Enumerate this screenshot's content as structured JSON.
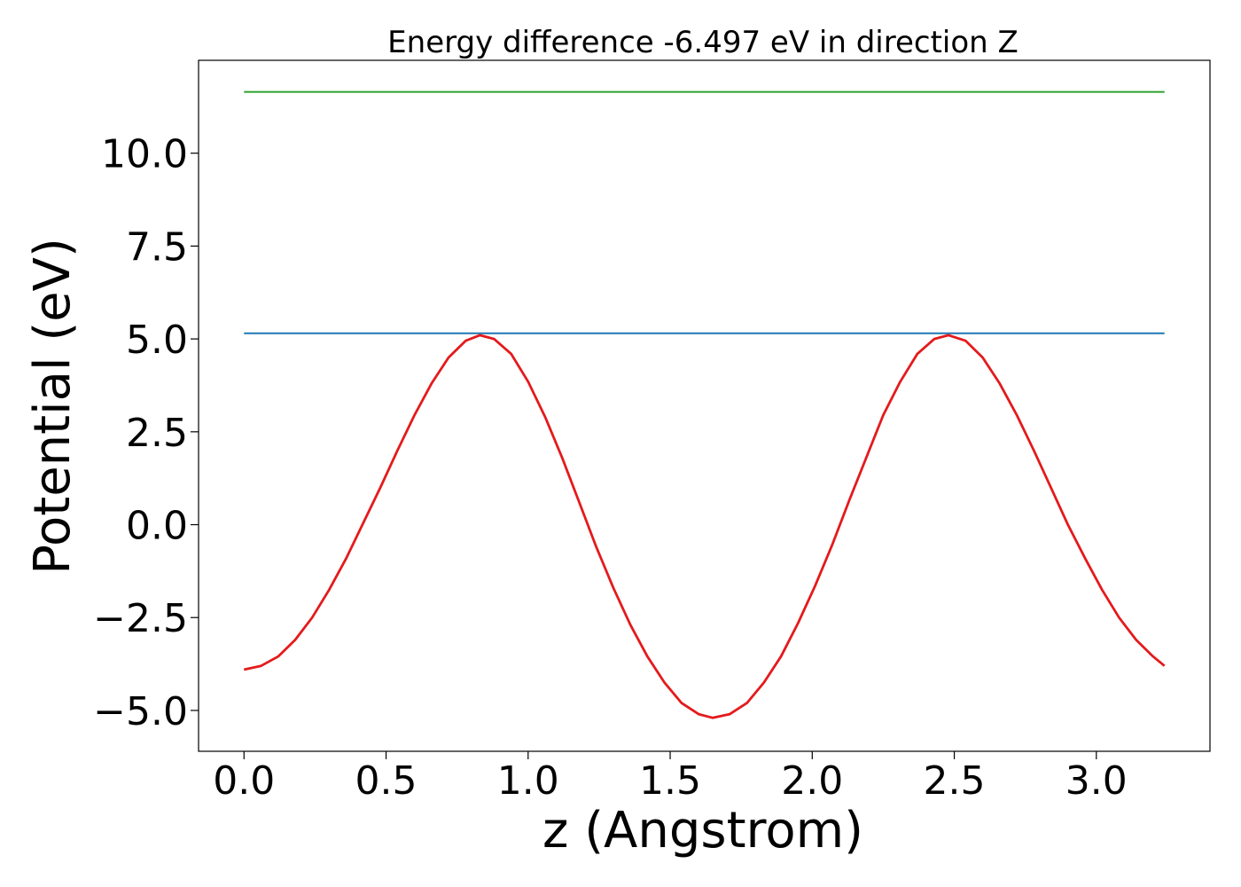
{
  "chart_data": {
    "type": "line",
    "title": "Energy difference -6.497 eV in direction Z",
    "xlabel": "z (Angstrom)",
    "ylabel": "Potential (eV)",
    "xlim": [
      -0.16,
      3.4
    ],
    "ylim": [
      -6.1,
      12.5
    ],
    "xticks": [
      0.0,
      0.5,
      1.0,
      1.5,
      2.0,
      2.5,
      3.0
    ],
    "xtick_labels": [
      "0.0",
      "0.5",
      "1.0",
      "1.5",
      "2.0",
      "2.5",
      "3.0"
    ],
    "yticks": [
      -5.0,
      -2.5,
      0.0,
      2.5,
      5.0,
      7.5,
      10.0
    ],
    "ytick_labels": [
      "−5.0",
      "−2.5",
      "0.0",
      "2.5",
      "5.0",
      "7.5",
      "10.0"
    ],
    "grid": false,
    "series": [
      {
        "color": "#2ca02c",
        "x": [
          0.0,
          3.24
        ],
        "y": [
          11.65,
          11.65
        ]
      },
      {
        "color": "#1f77b4",
        "x": [
          0.0,
          3.24
        ],
        "y": [
          5.15,
          5.15
        ]
      },
      {
        "color": "#e41a1c",
        "x": [
          0.0,
          0.06,
          0.12,
          0.18,
          0.24,
          0.3,
          0.36,
          0.42,
          0.48,
          0.54,
          0.6,
          0.66,
          0.72,
          0.78,
          0.83,
          0.88,
          0.94,
          1.0,
          1.06,
          1.12,
          1.18,
          1.24,
          1.3,
          1.36,
          1.42,
          1.48,
          1.54,
          1.6,
          1.65,
          1.71,
          1.77,
          1.83,
          1.89,
          1.95,
          2.01,
          2.07,
          2.13,
          2.19,
          2.25,
          2.31,
          2.37,
          2.43,
          2.48,
          2.54,
          2.6,
          2.66,
          2.72,
          2.78,
          2.84,
          2.9,
          2.96,
          3.02,
          3.08,
          3.14,
          3.2,
          3.24
        ],
        "y": [
          -3.9,
          -3.8,
          -3.55,
          -3.1,
          -2.5,
          -1.75,
          -0.9,
          0.05,
          1.0,
          2.0,
          2.95,
          3.8,
          4.5,
          4.95,
          5.1,
          5.0,
          4.6,
          3.85,
          2.9,
          1.8,
          0.6,
          -0.6,
          -1.7,
          -2.7,
          -3.55,
          -4.25,
          -4.8,
          -5.1,
          -5.2,
          -5.1,
          -4.8,
          -4.25,
          -3.55,
          -2.65,
          -1.65,
          -0.55,
          0.65,
          1.8,
          2.95,
          3.85,
          4.6,
          5.0,
          5.1,
          4.95,
          4.5,
          3.8,
          2.95,
          2.0,
          1.0,
          0.0,
          -0.9,
          -1.75,
          -2.5,
          -3.1,
          -3.55,
          -3.8
        ]
      }
    ]
  }
}
